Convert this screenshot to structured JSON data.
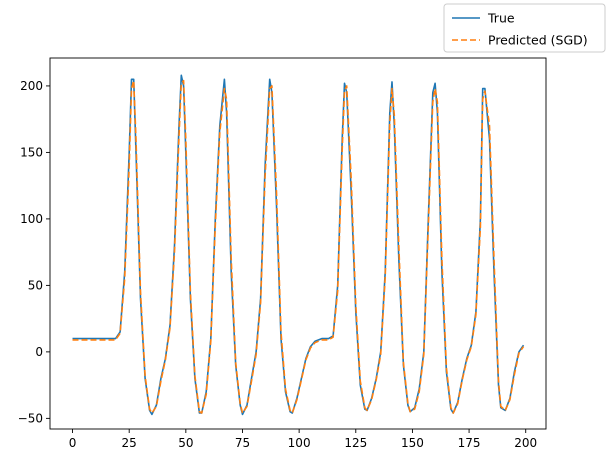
{
  "chart_data": {
    "type": "line",
    "title": "",
    "xlabel": "",
    "ylabel": "",
    "xlim": [
      -9.95,
      208.95
    ],
    "ylim": [
      -58,
      221
    ],
    "xticks": [
      0,
      25,
      50,
      75,
      100,
      125,
      150,
      175,
      200
    ],
    "yticks": [
      -50,
      0,
      50,
      100,
      150,
      200
    ],
    "legend": {
      "placement": "upper-right-outside"
    },
    "grid": false,
    "series": [
      {
        "name": "True",
        "color": "#1f77b4",
        "style": "solid",
        "x": [
          0,
          5,
          10,
          15,
          19,
          21,
          23,
          25,
          26,
          27,
          28,
          30,
          32,
          34,
          35,
          37,
          39,
          41,
          43,
          45,
          47,
          48,
          49,
          50,
          52,
          54,
          56,
          57,
          59,
          61,
          63,
          65,
          67,
          68,
          70,
          72,
          74,
          75,
          77,
          79,
          81,
          83,
          85,
          87,
          88,
          90,
          92,
          94,
          96,
          97,
          99,
          101,
          103,
          105,
          107,
          110,
          113,
          115,
          117,
          119,
          120,
          121,
          123,
          125,
          127,
          129,
          130,
          132,
          134,
          136,
          138,
          140,
          141,
          142,
          144,
          146,
          148,
          149,
          151,
          153,
          155,
          157,
          159,
          160,
          161,
          163,
          165,
          167,
          168,
          170,
          172,
          174,
          176,
          178,
          180,
          181,
          182,
          184,
          186,
          188,
          189,
          191,
          193,
          195,
          197,
          199
        ],
        "values": [
          10,
          10,
          10,
          10,
          10,
          15,
          60,
          150,
          205,
          205,
          150,
          40,
          -20,
          -44,
          -47,
          -40,
          -20,
          -5,
          20,
          80,
          170,
          208,
          200,
          150,
          40,
          -20,
          -46,
          -46,
          -30,
          10,
          100,
          170,
          205,
          180,
          60,
          -10,
          -40,
          -47,
          -40,
          -20,
          0,
          40,
          140,
          205,
          195,
          110,
          10,
          -30,
          -45,
          -46,
          -35,
          -20,
          -5,
          4,
          8,
          10,
          10,
          12,
          50,
          160,
          202,
          195,
          120,
          30,
          -25,
          -43,
          -44,
          -35,
          -20,
          0,
          60,
          180,
          203,
          170,
          70,
          -10,
          -40,
          -45,
          -42,
          -28,
          0,
          100,
          195,
          202,
          180,
          60,
          -15,
          -43,
          -46,
          -38,
          -20,
          -5,
          5,
          30,
          100,
          198,
          198,
          160,
          60,
          -25,
          -42,
          -44,
          -35,
          -15,
          0,
          5
        ]
      },
      {
        "name": "Predicted (SGD)",
        "color": "#ff7f0e",
        "style": "dashed",
        "x": [
          0,
          5,
          10,
          15,
          19,
          21,
          23,
          25,
          26,
          27,
          28,
          30,
          32,
          34,
          35,
          37,
          39,
          41,
          43,
          45,
          47,
          48,
          49,
          50,
          52,
          54,
          56,
          57,
          59,
          61,
          63,
          65,
          67,
          68,
          70,
          72,
          74,
          75,
          77,
          79,
          81,
          83,
          85,
          87,
          88,
          90,
          92,
          94,
          96,
          97,
          99,
          101,
          103,
          105,
          107,
          110,
          113,
          115,
          117,
          119,
          120,
          121,
          123,
          125,
          127,
          129,
          130,
          132,
          134,
          136,
          138,
          140,
          141,
          142,
          144,
          146,
          148,
          149,
          151,
          153,
          155,
          157,
          159,
          160,
          161,
          163,
          165,
          167,
          168,
          170,
          172,
          174,
          176,
          178,
          180,
          181,
          182,
          184,
          186,
          188,
          189,
          191,
          193,
          195,
          197,
          199
        ],
        "values": [
          9,
          9,
          9,
          9,
          9,
          14,
          55,
          140,
          198,
          204,
          160,
          45,
          -18,
          -43,
          -46,
          -41,
          -22,
          -6,
          18,
          75,
          162,
          202,
          204,
          160,
          45,
          -18,
          -45,
          -46,
          -32,
          8,
          95,
          165,
          198,
          190,
          70,
          -8,
          -39,
          -46,
          -41,
          -22,
          -2,
          37,
          132,
          198,
          200,
          120,
          15,
          -28,
          -44,
          -46,
          -36,
          -21,
          -6,
          3,
          7,
          9,
          9,
          11,
          46,
          152,
          196,
          200,
          130,
          35,
          -22,
          -42,
          -44,
          -36,
          -21,
          -2,
          56,
          172,
          198,
          178,
          80,
          -8,
          -39,
          -45,
          -43,
          -30,
          -2,
          94,
          188,
          198,
          188,
          70,
          -12,
          -42,
          -46,
          -39,
          -21,
          -6,
          4,
          28,
          94,
          190,
          196,
          170,
          70,
          -22,
          -41,
          -44,
          -36,
          -17,
          -1,
          4
        ]
      }
    ]
  }
}
